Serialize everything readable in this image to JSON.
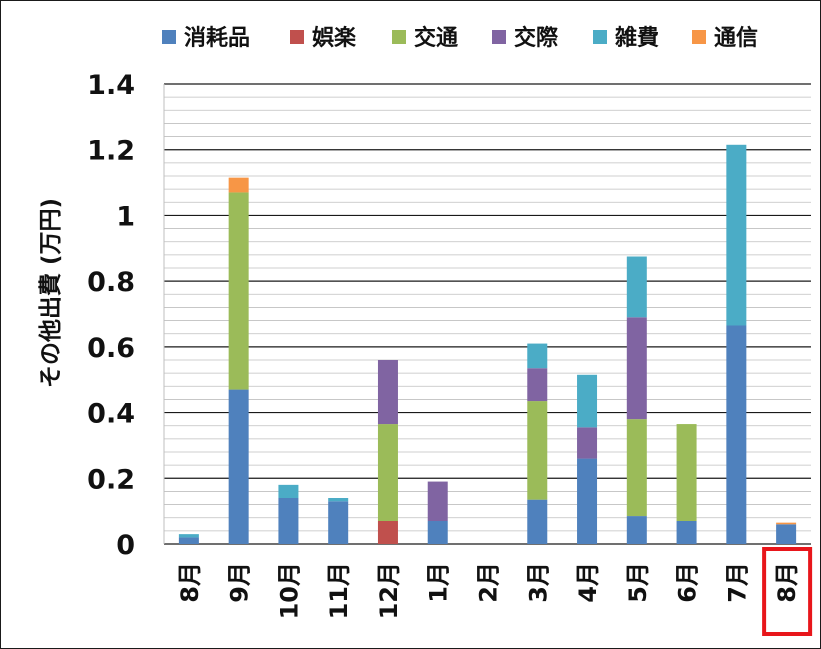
{
  "chart_data": {
    "type": "bar",
    "stacked": true,
    "ylabel": "その他出費 (万円)",
    "xlabel": "",
    "ylim": [
      0,
      1.4
    ],
    "yticks": [
      "0",
      "0.2",
      "0.4",
      "0.6",
      "0.8",
      "1",
      "1.2",
      "1.4"
    ],
    "major_step": 0.2,
    "minor_step": 0.04,
    "grid": true,
    "legend_position": "top",
    "categories": [
      "8月",
      "9月",
      "10月",
      "11月",
      "12月",
      "1月",
      "2月",
      "3月",
      "4月",
      "5月",
      "6月",
      "7月",
      "8月"
    ],
    "highlighted_category_index": 12,
    "highlight_color": "#e8161b",
    "series": [
      {
        "name": "消耗品",
        "color": "#4f81bd",
        "values": [
          0.02,
          0.47,
          0.14,
          0.13,
          0,
          0.07,
          0,
          0.135,
          0.26,
          0.085,
          0.07,
          0.665,
          0.06
        ]
      },
      {
        "name": "娯楽",
        "color": "#c0504d",
        "values": [
          0,
          0,
          0,
          0,
          0.07,
          0,
          0,
          0,
          0,
          0,
          0,
          0,
          0
        ]
      },
      {
        "name": "交通",
        "color": "#9bbb59",
        "values": [
          0,
          0.6,
          0,
          0,
          0.295,
          0,
          0,
          0.3,
          0,
          0.295,
          0.295,
          0,
          0
        ]
      },
      {
        "name": "交際",
        "color": "#8064a2",
        "values": [
          0,
          0,
          0,
          0,
          0.195,
          0.12,
          0,
          0.1,
          0.095,
          0.31,
          0,
          0,
          0
        ]
      },
      {
        "name": "雑費",
        "color": "#4bacc6",
        "values": [
          0.01,
          0,
          0.04,
          0.01,
          0,
          0,
          0,
          0.075,
          0.16,
          0.185,
          0,
          0.55,
          0
        ]
      },
      {
        "name": "通信",
        "color": "#f79646",
        "values": [
          0,
          0.045,
          0,
          0,
          0,
          0,
          0,
          0,
          0,
          0,
          0,
          0,
          0.005
        ]
      }
    ]
  }
}
